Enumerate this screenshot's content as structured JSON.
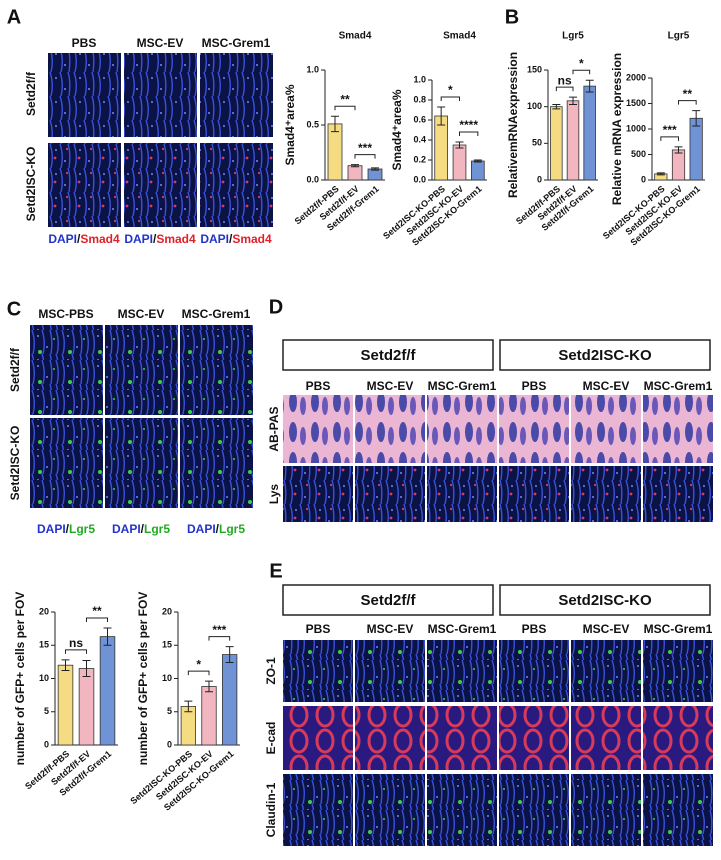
{
  "panels": {
    "a": "A",
    "b": "B",
    "c": "C",
    "d": "D",
    "e": "E"
  },
  "panel_a": {
    "columns": [
      "PBS",
      "MSC-EV",
      "MSC-Grem1"
    ],
    "rows": [
      "Setd2f/f",
      "Setd2ISC-KO"
    ],
    "stain": [
      "DAPI",
      "/",
      "Smad4"
    ]
  },
  "panel_c": {
    "columns": [
      "MSC-PBS",
      "MSC-EV",
      "MSC-Grem1"
    ],
    "rows": [
      "Setd2f/f",
      "Setd2ISC-KO"
    ],
    "stain": [
      "DAPI",
      "/",
      "Lgr5"
    ]
  },
  "panel_d": {
    "groups": [
      "Setd2f/f",
      "Setd2ISC-KO"
    ],
    "columns": [
      "PBS",
      "MSC-EV",
      "MSC-Grem1",
      "PBS",
      "MSC-EV",
      "MSC-Grem1"
    ],
    "rows": [
      "AB-PAS",
      "Lys"
    ]
  },
  "panel_e": {
    "groups": [
      "Setd2f/f",
      "Setd2ISC-KO"
    ],
    "columns": [
      "PBS",
      "MSC-EV",
      "MSC-Grem1",
      "PBS",
      "MSC-EV",
      "MSC-Grem1"
    ],
    "rows": [
      "ZO-1",
      "E-cad",
      "Claudin-1"
    ]
  },
  "chart_data": [
    {
      "type": "bar",
      "title": "Smad4",
      "ylabel": "Smad4⁺area%",
      "categories": [
        "Setd2f/f-PBS",
        "Setd2f/f-EV",
        "Setd2f/f-Grem1"
      ],
      "values": [
        0.51,
        0.13,
        0.1
      ],
      "errors": [
        0.07,
        0.01,
        0.01
      ],
      "colors": [
        "#f5dc82",
        "#f2b6c0",
        "#6f93d4"
      ],
      "ylim": [
        0,
        1
      ],
      "yticks": [
        {
          "value": 0,
          "label": "0.0"
        },
        0.5,
        {
          "value": 1,
          "label": "1.0"
        }
      ],
      "annotations": [
        "**",
        "***"
      ]
    },
    {
      "type": "bar",
      "title": "Smad4",
      "ylabel": "Smad4⁺area%",
      "categories": [
        "Setd2ISC-KO-PBS",
        "Setd2ISC-KO-EV",
        "Setd2ISC-KO-Grem1"
      ],
      "values": [
        0.64,
        0.35,
        0.19
      ],
      "errors": [
        0.09,
        0.03,
        0.01
      ],
      "colors": [
        "#f5dc82",
        "#f2b6c0",
        "#6f93d4"
      ],
      "ylim": [
        0,
        1
      ],
      "yticks": [
        {
          "value": 0,
          "label": "0.0"
        },
        0.2,
        0.4,
        0.6,
        0.8,
        {
          "value": 1,
          "label": "1.0"
        }
      ],
      "annotations": [
        "*",
        "****"
      ]
    },
    {
      "type": "bar",
      "title": "Lgr5",
      "ylabel": "RelativemRNAexpression",
      "categories": [
        "Setd2f/f-PBS",
        "Setd2f/f-EV",
        "Setd2f/f-Grem1"
      ],
      "values": [
        100,
        108,
        128
      ],
      "errors": [
        3,
        5,
        8
      ],
      "colors": [
        "#f5dc82",
        "#f2b6c0",
        "#6f93d4"
      ],
      "ylim": [
        0,
        150
      ],
      "yticks": [
        0,
        50,
        100,
        150
      ],
      "annotations": [
        "ns",
        "*"
      ]
    },
    {
      "type": "bar",
      "title": "Lgr5",
      "ylabel": "Relative mRNA expression",
      "categories": [
        "Setd2ISC-KO-PBS",
        "Setd2ISC-KO-EV",
        "Setd2ISC-KO-Grem1"
      ],
      "values": [
        120,
        590,
        1210
      ],
      "errors": [
        20,
        60,
        150
      ],
      "colors": [
        "#f5dc82",
        "#f2b6c0",
        "#6f93d4"
      ],
      "ylim": [
        0,
        2000
      ],
      "yticks": [
        0,
        500,
        1000,
        1500,
        2000
      ],
      "annotations": [
        "***",
        "**"
      ]
    },
    {
      "type": "bar",
      "ylabel": "number of GFP+ cells per FOV",
      "categories": [
        "Setd2f/f-PBS",
        "Setd2f/f-EV",
        "Setd2f/f-Grem1"
      ],
      "values": [
        12,
        11.5,
        16.3
      ],
      "errors": [
        0.8,
        1.2,
        1.3
      ],
      "colors": [
        "#f5dc82",
        "#f2b6c0",
        "#6f93d4"
      ],
      "ylim": [
        0,
        20
      ],
      "yticks": [
        0,
        5,
        10,
        15,
        20
      ],
      "annotations": [
        "ns",
        "**"
      ]
    },
    {
      "type": "bar",
      "ylabel": "number of GFP+ cells per FOV",
      "categories": [
        "Setd2ISC-KO-PBS",
        "Setd2ISC-KO-EV",
        "Setd2ISC-KO-Grem1"
      ],
      "values": [
        5.8,
        8.8,
        13.6
      ],
      "errors": [
        0.8,
        0.8,
        1.2
      ],
      "colors": [
        "#f5dc82",
        "#f2b6c0",
        "#6f93d4"
      ],
      "ylim": [
        0,
        20
      ],
      "yticks": [
        0,
        5,
        10,
        15,
        20
      ],
      "annotations": [
        "*",
        "***"
      ]
    }
  ]
}
